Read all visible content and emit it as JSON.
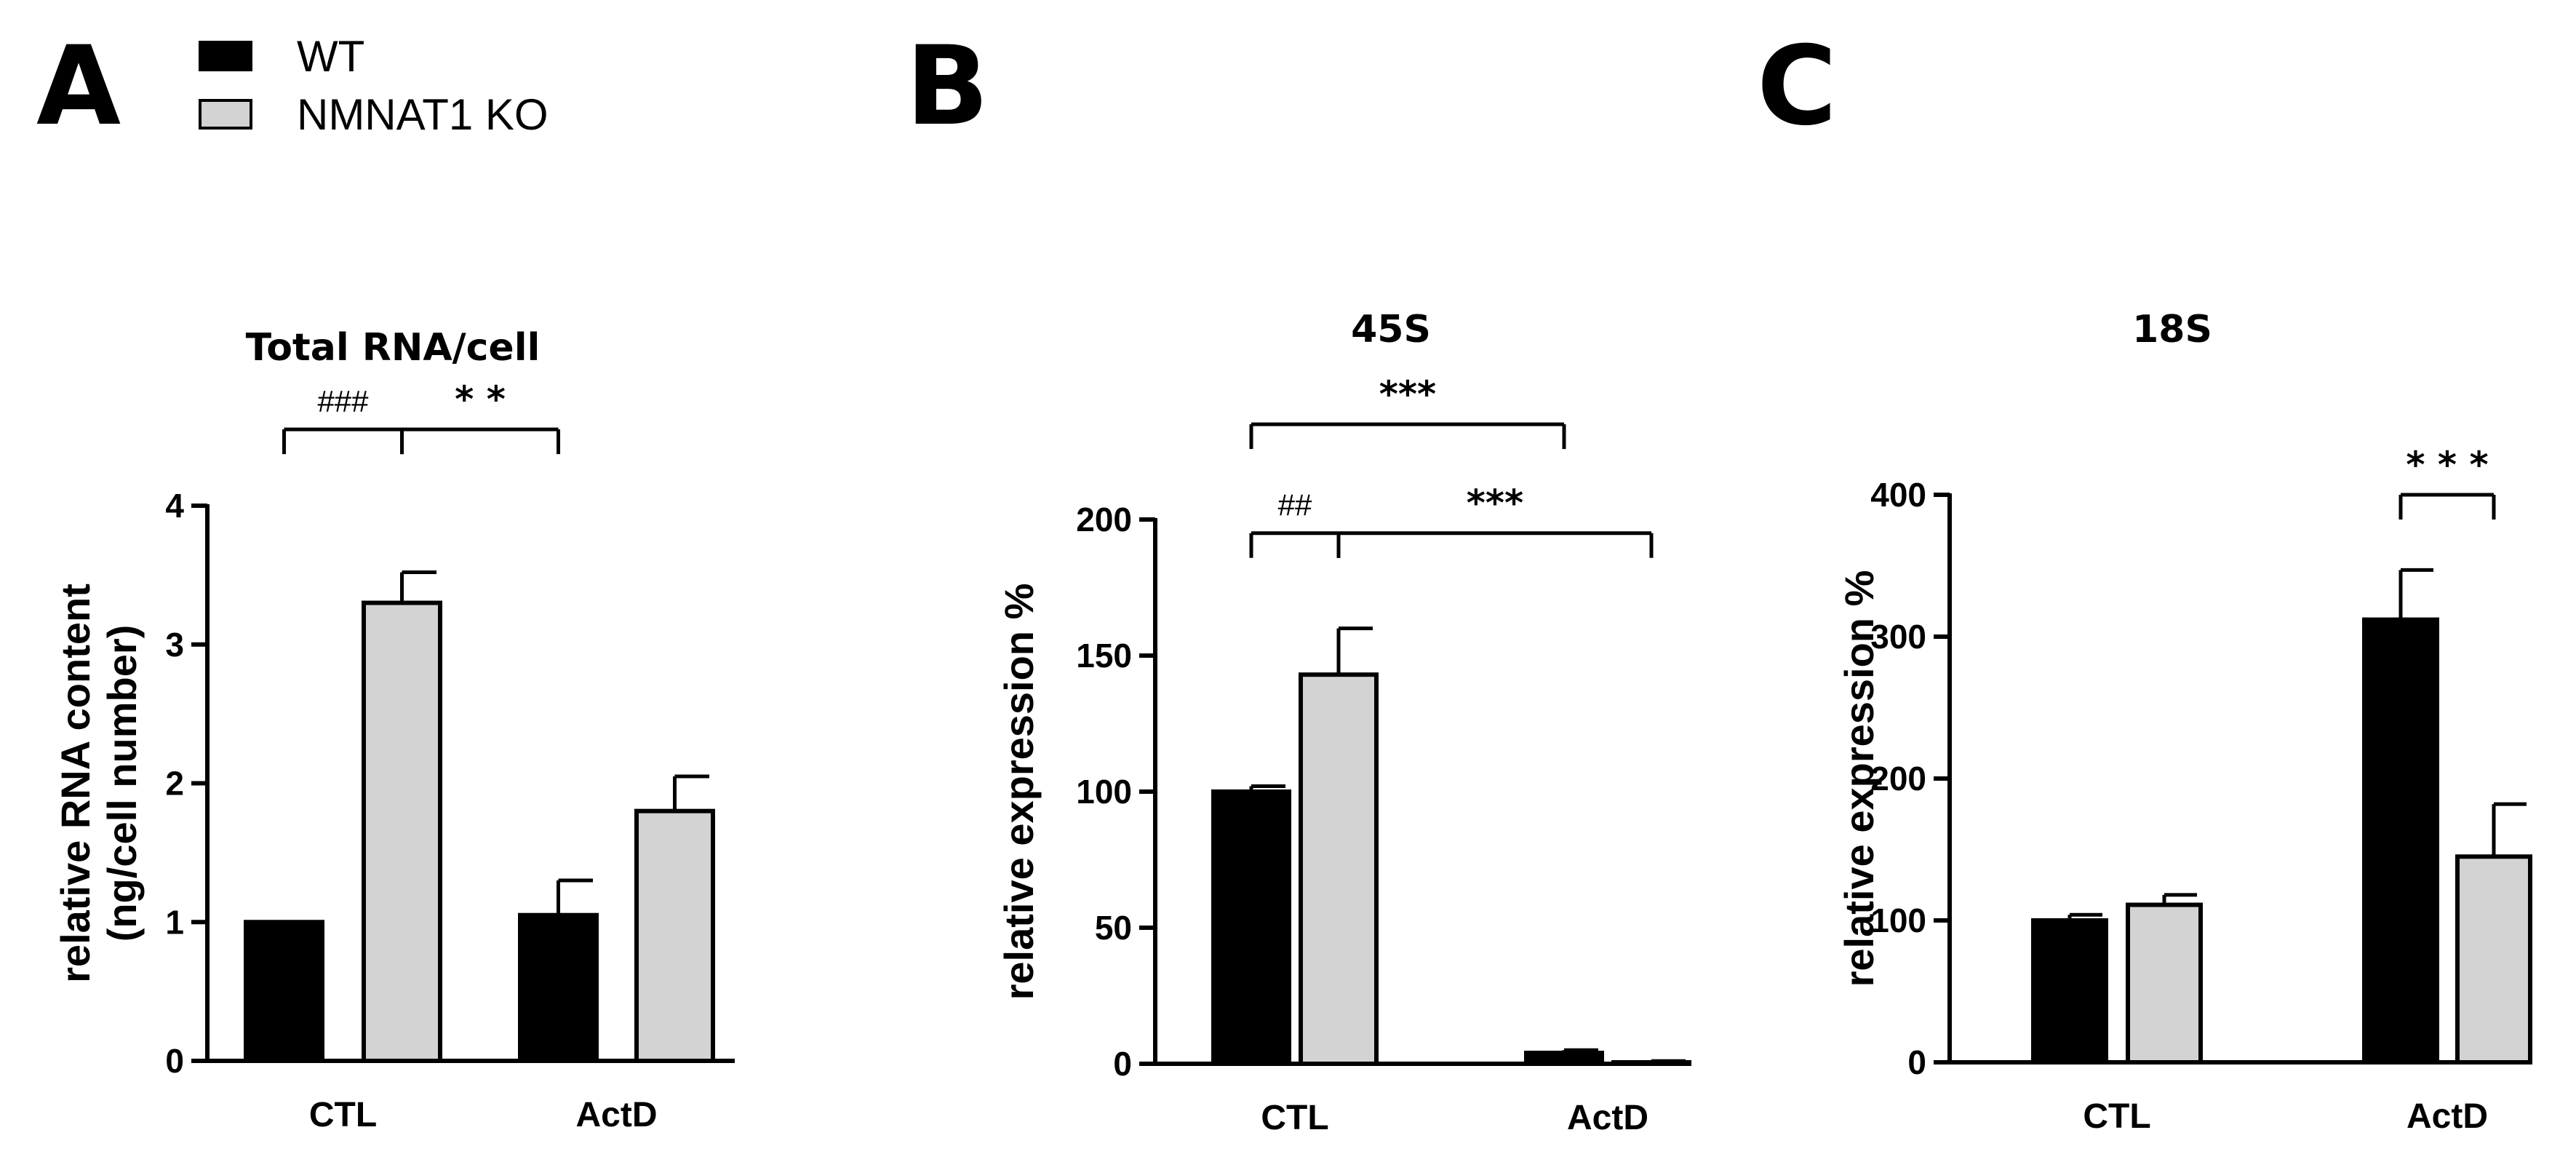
{
  "legend": {
    "items": [
      {
        "label": "WT",
        "color": "#000000"
      },
      {
        "label": "NMNAT1 KO",
        "color": "#d3d3d3"
      }
    ]
  },
  "chart_data": [
    {
      "type": "bar",
      "panel": "A",
      "title": "Total RNA/cell",
      "ylabel": [
        "relative RNA content",
        "(ng/cell number)"
      ],
      "xlabel": "",
      "categories": [
        "CTL",
        "ActD"
      ],
      "ylim": [
        0,
        4
      ],
      "yticks": [
        0,
        1,
        2,
        3,
        4
      ],
      "series": [
        {
          "name": "WT",
          "values": [
            1.0,
            1.05
          ],
          "errors": [
            0.0,
            0.25
          ]
        },
        {
          "name": "NMNAT1 KO",
          "values": [
            3.3,
            1.8
          ],
          "errors": [
            0.22,
            0.25
          ]
        }
      ],
      "annotations": [
        {
          "text": "###",
          "style": "hash",
          "from": [
            0,
            0
          ],
          "to": [
            0,
            1
          ],
          "y": 4.55
        },
        {
          "text": "* *",
          "style": "sig",
          "from": [
            0,
            1
          ],
          "to": [
            1,
            0
          ],
          "y": 4.55,
          "fromMid": true
        }
      ]
    },
    {
      "type": "bar",
      "panel": "B",
      "title": "45S",
      "ylabel": [
        "relative expression %"
      ],
      "xlabel": "",
      "categories": [
        "CTL",
        "ActD"
      ],
      "ylim": [
        0,
        200
      ],
      "yticks": [
        0,
        50,
        100,
        150,
        200
      ],
      "series": [
        {
          "name": "WT",
          "values": [
            100,
            4
          ],
          "errors": [
            2,
            1
          ]
        },
        {
          "name": "NMNAT1 KO",
          "values": [
            143,
            0.5
          ],
          "errors": [
            17,
            0.5
          ]
        }
      ],
      "annotations": [
        {
          "text": "***",
          "style": "sig",
          "from": [
            0,
            0
          ],
          "to": [
            1,
            0
          ],
          "y": 235
        },
        {
          "text": "##",
          "style": "hash",
          "from": [
            0,
            0
          ],
          "to": [
            0,
            1
          ],
          "y": 195
        },
        {
          "text": "***",
          "style": "sig",
          "from": [
            0,
            1
          ],
          "to": [
            1,
            1
          ],
          "y": 195,
          "fromMid": true
        }
      ]
    },
    {
      "type": "bar",
      "panel": "C",
      "title": "18S",
      "ylabel": [
        "relative expression %"
      ],
      "xlabel": "",
      "categories": [
        "CTL",
        "ActD"
      ],
      "ylim": [
        0,
        400
      ],
      "yticks": [
        0,
        100,
        200,
        300,
        400
      ],
      "series": [
        {
          "name": "WT",
          "values": [
            100,
            312
          ],
          "errors": [
            4,
            35
          ]
        },
        {
          "name": "NMNAT1 KO",
          "values": [
            111,
            145
          ],
          "errors": [
            7,
            37
          ]
        }
      ],
      "annotations": [
        {
          "text": "* * *",
          "style": "sig",
          "from": [
            1,
            0
          ],
          "to": [
            1,
            1
          ],
          "y": 400
        }
      ]
    }
  ]
}
